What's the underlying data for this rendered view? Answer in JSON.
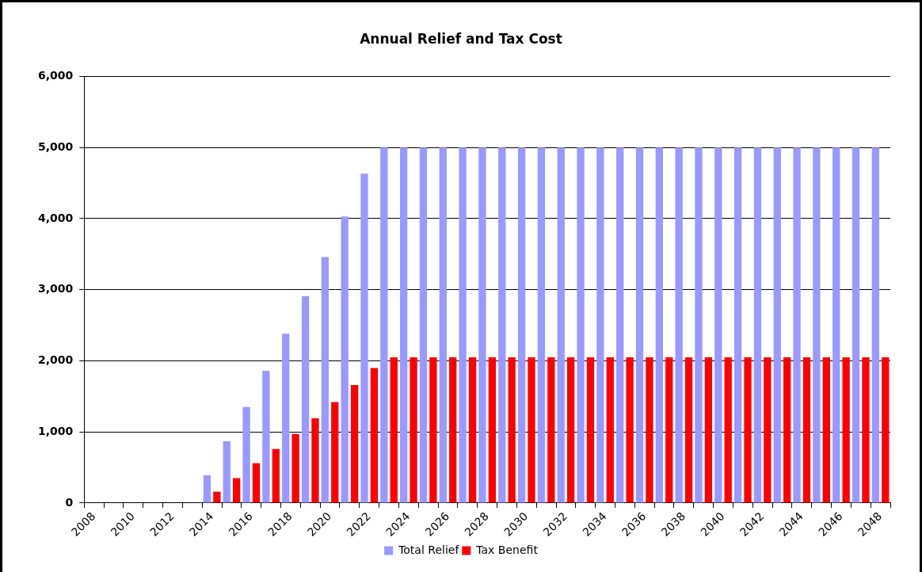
{
  "chart_data": {
    "type": "bar",
    "title": "Annual Relief and Tax Cost",
    "categories": [
      "2008",
      null,
      "2010",
      null,
      "2012",
      null,
      "2014",
      null,
      "2016",
      null,
      "2018",
      null,
      "2020",
      null,
      "2022",
      null,
      "2024",
      null,
      "2026",
      null,
      "2028",
      null,
      "2030",
      null,
      "2032",
      null,
      "2034",
      null,
      "2036",
      null,
      "2038",
      null,
      "2040",
      null,
      "2042",
      null,
      "2044",
      null,
      "2046",
      null,
      "2048"
    ],
    "series": [
      {
        "name": "Total Relief",
        "color": "#9999ff",
        "values": [
          0,
          0,
          0,
          0,
          0,
          0,
          390,
          870,
          1350,
          1860,
          2380,
          2910,
          3460,
          4030,
          4630,
          5000,
          5000,
          5000,
          5000,
          5000,
          5000,
          5000,
          5000,
          5000,
          5000,
          5000,
          5000,
          5000,
          5000,
          5000,
          5000,
          5000,
          5000,
          5000,
          5000,
          5000,
          5000,
          5000,
          5000,
          5000,
          5000
        ]
      },
      {
        "name": "Tax Benefit",
        "color": "#ff0000",
        "values": [
          0,
          0,
          0,
          0,
          0,
          0,
          160,
          350,
          560,
          760,
          970,
          1190,
          1420,
          1660,
          1900,
          2050,
          2050,
          2050,
          2050,
          2050,
          2050,
          2050,
          2050,
          2050,
          2050,
          2050,
          2050,
          2050,
          2050,
          2050,
          2050,
          2050,
          2050,
          2050,
          2050,
          2050,
          2050,
          2050,
          2050,
          2050,
          2050
        ]
      }
    ],
    "ylim": [
      0,
      6000
    ],
    "yticks": [
      {
        "value": 0,
        "label": "0"
      },
      {
        "value": 1000,
        "label": "1,000"
      },
      {
        "value": 2000,
        "label": "2,000"
      },
      {
        "value": 3000,
        "label": "3,000"
      },
      {
        "value": 4000,
        "label": "4,000"
      },
      {
        "value": 5000,
        "label": "5,000"
      },
      {
        "value": 6000,
        "label": "6,000"
      }
    ],
    "grid": "y",
    "legend": "bottom"
  }
}
